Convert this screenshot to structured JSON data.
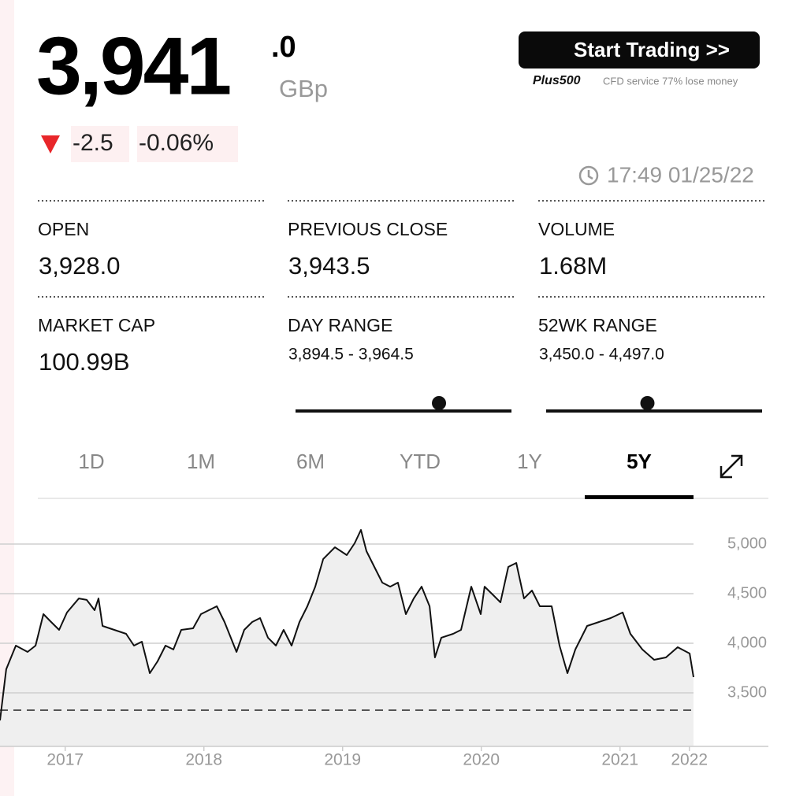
{
  "quote": {
    "price": {
      "whole": "3,941",
      "decimal": ".0",
      "value": 3941.0
    },
    "currency": "GBp",
    "change": "-2.5",
    "change_percent": "-0.06%",
    "time": "17:49 01/25/22"
  },
  "promo": {
    "button": "Start Trading >>",
    "brand": "Plus500",
    "disclaimer": "CFD service 77% lose money"
  },
  "stats": [
    {
      "label": "OPEN",
      "value": "3,928.0"
    },
    {
      "label": "PREVIOUS CLOSE",
      "value": "3,943.5"
    },
    {
      "label": "VOLUME",
      "value": "1.68M"
    },
    {
      "label": "MARKET CAP",
      "value": "100.99B"
    },
    {
      "label": "DAY RANGE",
      "value": "3,894.5 - 3,964.5",
      "low": 3894.5,
      "high": 3964.5
    },
    {
      "label": "52WK RANGE",
      "value": "3,450.0 - 4,497.0",
      "low": 3450.0,
      "high": 4497.0
    }
  ],
  "tabs": {
    "items": [
      "1D",
      "1M",
      "6M",
      "YTD",
      "1Y",
      "5Y"
    ],
    "active": 5
  },
  "chart_data": {
    "type": "line",
    "color": "#111111",
    "x": [
      2016.53,
      2016.575,
      2016.644,
      2016.729,
      2016.786,
      2016.843,
      2016.899,
      2016.956,
      2017.013,
      2017.098,
      2017.155,
      2017.212,
      2017.24,
      2017.269,
      2017.354,
      2017.439,
      2017.496,
      2017.553,
      2017.61,
      2017.666,
      2017.723,
      2017.78,
      2017.837,
      2017.922,
      2017.979,
      2018.093,
      2018.149,
      2018.235,
      2018.291,
      2018.348,
      2018.405,
      2018.462,
      2018.519,
      2018.575,
      2018.632,
      2018.689,
      2018.746,
      2018.803,
      2018.86,
      2018.945,
      2019.03,
      2019.087,
      2019.132,
      2019.172,
      2019.229,
      2019.286,
      2019.343,
      2019.399,
      2019.456,
      2019.513,
      2019.57,
      2019.627,
      2019.666,
      2019.712,
      2019.797,
      2019.854,
      2019.928,
      2019.996,
      2020.024,
      2020.081,
      2020.138,
      2020.195,
      2020.252,
      2020.308,
      2020.365,
      2020.422,
      2020.507,
      2020.564,
      2020.621,
      2020.678,
      2020.763,
      2020.848,
      2020.933,
      2021.019,
      2021.075,
      2021.161,
      2021.246,
      2021.331,
      2021.416,
      2021.502,
      2021.53
    ],
    "values": [
      3222,
      3738,
      3976,
      3913,
      3976,
      4294,
      4214,
      4135,
      4310,
      4452,
      4437,
      4333,
      4452,
      4175,
      4135,
      4095,
      3976,
      4016,
      3698,
      3817,
      3976,
      3937,
      4135,
      4151,
      4294,
      4373,
      4214,
      3913,
      4135,
      4214,
      4254,
      4056,
      3976,
      4135,
      3976,
      4214,
      4373,
      4571,
      4849,
      4968,
      4889,
      5008,
      5143,
      4929,
      4770,
      4611,
      4571,
      4611,
      4294,
      4452,
      4571,
      4373,
      3857,
      4056,
      4095,
      4135,
      4571,
      4294,
      4571,
      4492,
      4413,
      4770,
      4810,
      4452,
      4532,
      4373,
      4373,
      3976,
      3698,
      3937,
      4175,
      4214,
      4254,
      4310,
      4095,
      3937,
      3833,
      3857,
      3960,
      3897,
      3659
    ],
    "xlim": [
      2016.53,
      2021.53
    ],
    "ylim": [
      2960,
      5290
    ],
    "xticks": [
      2017,
      2018,
      2019,
      2020,
      2021,
      {
        "value": 2021.5,
        "label": "2022"
      }
    ],
    "yticks": [
      {
        "value": 3500,
        "label": "3,500"
      },
      {
        "value": 4000,
        "label": "4,000"
      },
      {
        "value": 4500,
        "label": "4,500"
      },
      {
        "value": 5000,
        "label": "5,000"
      }
    ],
    "reference_line": 3325,
    "grid": true
  }
}
